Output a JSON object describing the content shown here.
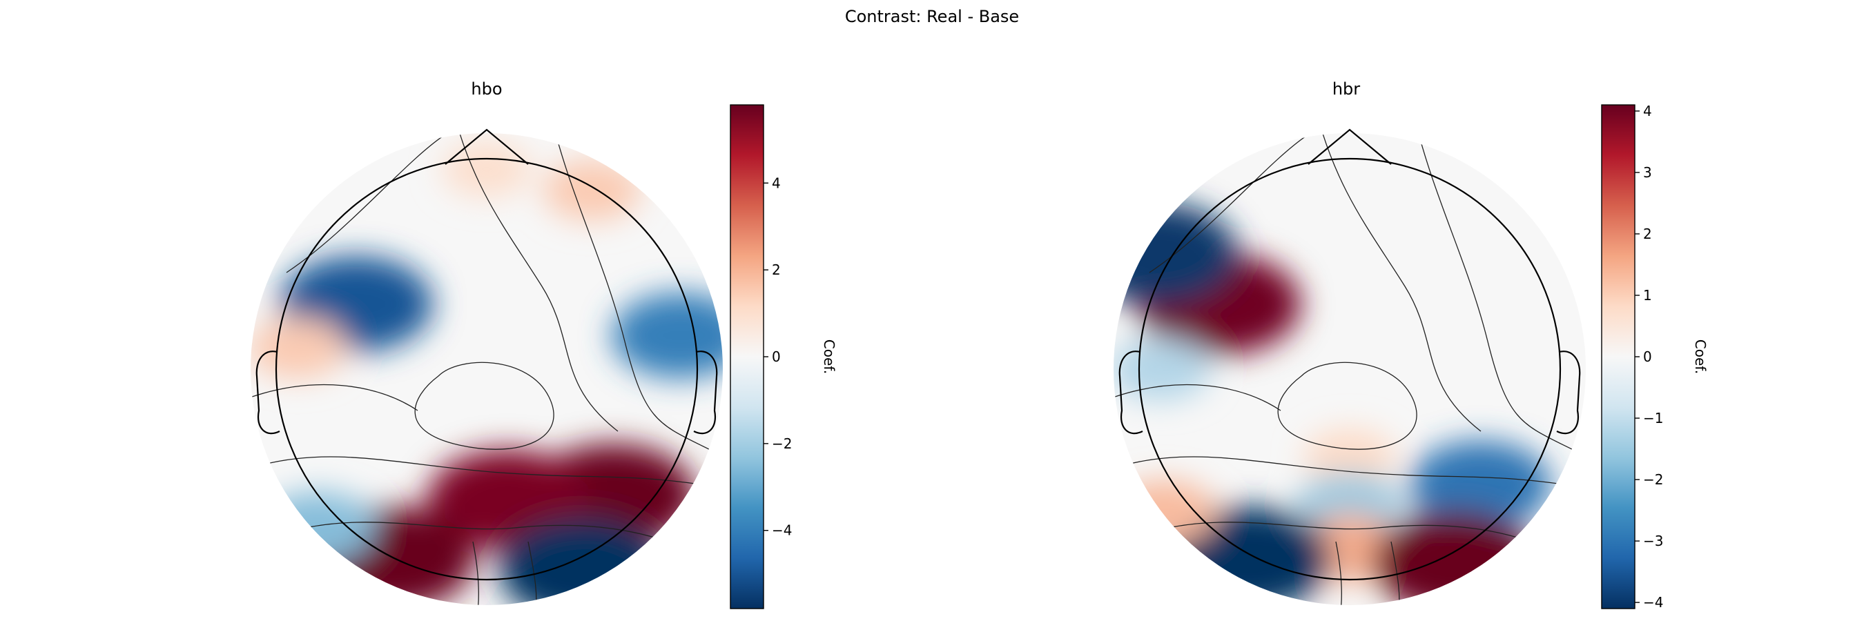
{
  "figure": {
    "suptitle": "Contrast: Real - Base"
  },
  "chart_data": [
    {
      "type": "heatmap",
      "subtype": "topomap",
      "title": "hbo",
      "colormap": "RdBu_r",
      "colorbar": {
        "label": "Coef.",
        "vmin": -5.8,
        "vmax": 5.8,
        "ticks": [
          -4,
          -2,
          0,
          2,
          4
        ],
        "tick_labels": [
          "−4",
          "−2",
          "0",
          "2",
          "4"
        ]
      },
      "blobs": [
        {
          "region": "left-frontal",
          "x": -0.62,
          "y": 0.31,
          "value": -5.0
        },
        {
          "region": "right-frontal-temporal",
          "x": 0.92,
          "y": 0.16,
          "value": -4.0
        },
        {
          "region": "frontal-midline",
          "x": 0.0,
          "y": 0.95,
          "value": 1.0
        },
        {
          "region": "right-frontal-pole",
          "x": 0.5,
          "y": 0.85,
          "value": 1.5
        },
        {
          "region": "left-temporal",
          "x": -0.9,
          "y": 0.1,
          "value": 1.5
        },
        {
          "region": "right-parietal",
          "x": 0.6,
          "y": -0.6,
          "value": 5.8
        },
        {
          "region": "parietal-band",
          "x": 0.1,
          "y": -0.62,
          "value": 5.5
        },
        {
          "region": "left-occipital",
          "x": -0.45,
          "y": -0.9,
          "value": 5.8
        },
        {
          "region": "right-occipital",
          "x": 0.45,
          "y": -0.95,
          "value": -5.8
        },
        {
          "region": "left-posterior-temporal",
          "x": -0.8,
          "y": -0.75,
          "value": -2.5
        }
      ]
    },
    {
      "type": "heatmap",
      "subtype": "topomap",
      "title": "hbr",
      "colormap": "RdBu_r",
      "colorbar": {
        "label": "Coef.",
        "vmin": -4.1,
        "vmax": 4.1,
        "ticks": [
          -4,
          -3,
          -2,
          -1,
          0,
          1,
          2,
          3,
          4
        ],
        "tick_labels": [
          "−4",
          "−3",
          "−2",
          "−1",
          "0",
          "1",
          "2",
          "3",
          "4"
        ]
      },
      "blobs": [
        {
          "region": "left-frontal",
          "x": -0.62,
          "y": 0.31,
          "value": 4.0
        },
        {
          "region": "left-frontal-lateral",
          "x": -0.92,
          "y": 0.55,
          "value": -4.0
        },
        {
          "region": "left-temporal",
          "x": -0.9,
          "y": 0.0,
          "value": -1.2
        },
        {
          "region": "central",
          "x": 0.0,
          "y": -0.42,
          "value": 0.8
        },
        {
          "region": "right-parietal",
          "x": 0.62,
          "y": -0.55,
          "value": -3.0
        },
        {
          "region": "parietal-band",
          "x": 0.0,
          "y": -0.65,
          "value": -1.5
        },
        {
          "region": "occipital-midline",
          "x": 0.0,
          "y": -0.85,
          "value": 1.5
        },
        {
          "region": "left-occipital",
          "x": -0.48,
          "y": -0.9,
          "value": -4.1
        },
        {
          "region": "right-occipital",
          "x": 0.5,
          "y": -0.92,
          "value": 4.1
        },
        {
          "region": "left-posterior-temporal",
          "x": -0.88,
          "y": -0.68,
          "value": 1.3
        }
      ]
    }
  ]
}
